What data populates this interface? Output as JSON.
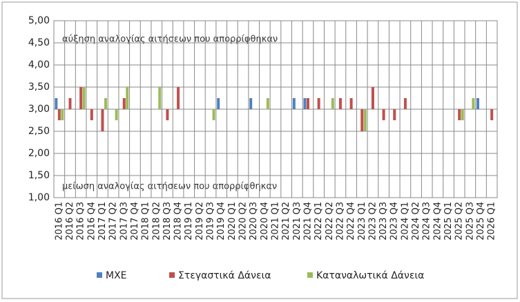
{
  "chart_data": {
    "type": "bar",
    "annotations": [
      "αύξηση αναλογίας αιτήσεων που απορρίφθηκαν",
      "μείωση αναλογίας αιτήσεων που απορρίφθηκαν"
    ],
    "categories": [
      "2016 Q1",
      "2016 Q2",
      "2016 Q3",
      "2016 Q4",
      "2017 Q1",
      "2017 Q2",
      "2017 Q3",
      "2017 Q4",
      "2018 Q1",
      "2018 Q2",
      "2018 Q3",
      "2018 Q4",
      "2019 Q1",
      "2019 Q2",
      "2019 Q3",
      "2019 Q4",
      "2020 Q1",
      "2020 Q2",
      "2020 Q3",
      "2020 Q4",
      "2021 Q1",
      "2021 Q2",
      "2021 Q3",
      "2021 Q4",
      "2022 Q1",
      "2022 Q2",
      "2022 Q3",
      "2022 Q4",
      "2023 Q1",
      "2023 Q2",
      "2023 Q3",
      "2023 Q4",
      "2024 Q1",
      "2024 Q2",
      "2024 Q3",
      "2024 Q4",
      "2025 Q1",
      "2025 Q2",
      "2025 Q3",
      "2025 Q4",
      "2026 Q1"
    ],
    "series": [
      {
        "name": "ΜΧΕ",
        "color": "#4f81bd",
        "values": [
          3.25,
          3,
          3,
          3,
          3,
          3,
          3,
          3,
          3,
          3,
          3,
          3,
          3,
          3,
          3,
          3.25,
          3,
          3,
          3.25,
          3,
          3,
          3,
          3.25,
          3.25,
          3,
          3,
          3,
          3,
          3,
          3,
          3,
          3,
          3,
          3,
          3,
          3,
          3,
          3,
          3,
          3.25,
          3
        ]
      },
      {
        "name": "Στεγαστικά Δάνεια",
        "color": "#c0504d",
        "values": [
          2.75,
          3.25,
          3.5,
          2.75,
          2.5,
          3,
          3.25,
          3,
          3,
          3,
          2.75,
          3.5,
          3,
          3,
          3,
          3,
          3,
          3,
          3,
          3,
          3,
          3,
          3,
          3.25,
          3.25,
          3,
          3.25,
          3.25,
          2.5,
          3.5,
          2.75,
          2.75,
          3.25,
          3,
          3,
          3,
          3,
          2.75,
          3,
          3,
          2.75
        ]
      },
      {
        "name": "Καταναλωτικά Δάνεια",
        "color": "#9bbb59",
        "values": [
          2.75,
          3,
          3.5,
          3,
          3.25,
          2.75,
          3.5,
          3,
          3,
          3.5,
          3,
          3,
          3,
          3,
          2.75,
          3,
          3,
          3,
          3,
          3.25,
          3,
          3,
          3,
          3,
          3,
          3.25,
          3,
          3,
          2.5,
          3,
          3,
          3,
          3,
          3,
          3,
          3,
          3,
          2.75,
          3.25,
          3,
          3
        ]
      }
    ],
    "bar_base": 3,
    "ylim": [
      1,
      5
    ],
    "yticks": [
      {
        "value": 1,
        "label": "1,00"
      },
      {
        "value": 1.5,
        "label": "1,50"
      },
      {
        "value": 2,
        "label": "2,00"
      },
      {
        "value": 2.5,
        "label": "2,50"
      },
      {
        "value": 3,
        "label": "3,00"
      },
      {
        "value": 3.5,
        "label": "3,50"
      },
      {
        "value": 4,
        "label": "4,00"
      },
      {
        "value": 4.5,
        "label": "4,50"
      },
      {
        "value": 5,
        "label": "5,00"
      }
    ],
    "grid": true
  }
}
